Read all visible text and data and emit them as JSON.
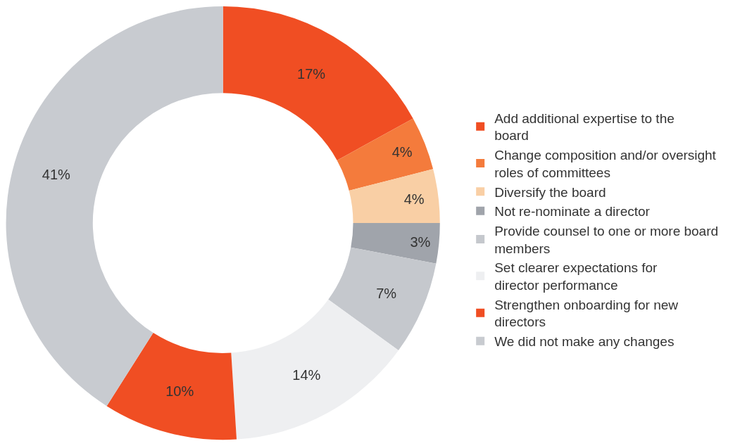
{
  "chart_data": {
    "type": "donut",
    "categories": [
      "Add additional expertise to the board",
      "Change composition and/or oversight roles of committees",
      "Diversify the board",
      "Not re-nominate a director",
      "Provide counsel to one or more board members",
      "Set clearer expectations for director performance",
      "Strengthen onboarding for new directors",
      "We did not make any changes"
    ],
    "values": [
      17,
      4,
      4,
      3,
      7,
      14,
      10,
      41
    ],
    "value_labels": [
      "17%",
      "4%",
      "4%",
      "3%",
      "7%",
      "14%",
      "10%",
      "41%"
    ],
    "colors": [
      "#f04e23",
      "#f47b3c",
      "#f9cfa5",
      "#a0a4ab",
      "#c5c8cd",
      "#eeeff1",
      "#f04e23",
      "#c8cbd0"
    ],
    "legend": "right"
  }
}
